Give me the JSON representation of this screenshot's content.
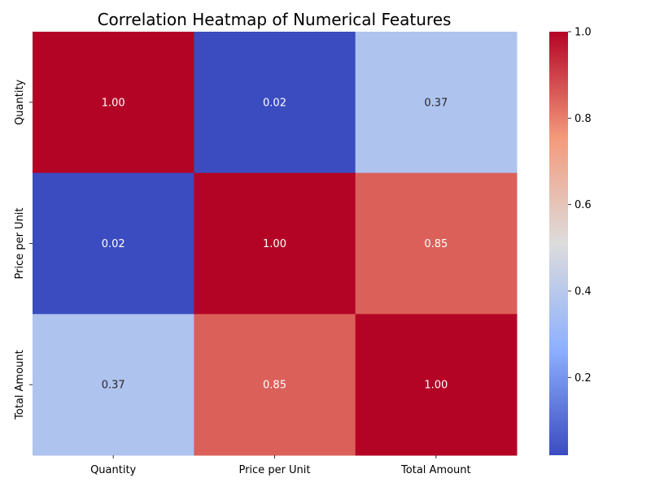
{
  "chart_data": {
    "type": "heatmap",
    "title": "Correlation Heatmap of Numerical Features",
    "xlabel": "",
    "ylabel": "",
    "x_categories": [
      "Quantity",
      "Price per Unit",
      "Total Amount"
    ],
    "y_categories": [
      "Quantity",
      "Price per Unit",
      "Total Amount"
    ],
    "values": [
      [
        1.0,
        0.02,
        0.37
      ],
      [
        0.02,
        1.0,
        0.85
      ],
      [
        0.37,
        0.85,
        1.0
      ]
    ],
    "annotations": [
      [
        "1.00",
        "0.02",
        "0.37"
      ],
      [
        "0.02",
        "1.00",
        "0.85"
      ],
      [
        "0.37",
        "0.85",
        "1.00"
      ]
    ],
    "colormap": "coolwarm",
    "vmin": 0.02,
    "vmax": 1.0,
    "colorbar": {
      "ticks": [
        0.2,
        0.4,
        0.6,
        0.8,
        1.0
      ],
      "tick_labels": [
        "0.2",
        "0.4",
        "0.6",
        "0.8",
        "1.0"
      ]
    }
  }
}
